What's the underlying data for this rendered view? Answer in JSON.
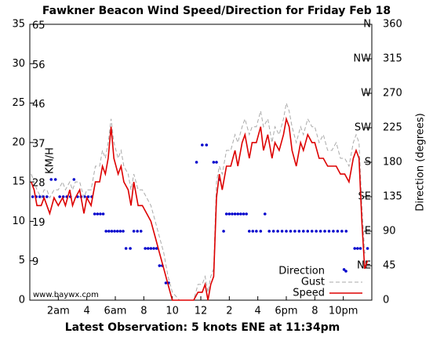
{
  "chart_data": {
    "type": "line",
    "title": "Fawkner Beacon Wind Speed/Direction for Friday Feb 18",
    "footer": "Latest Observation: 5 knots ENE at 11:34pm",
    "watermark": "www.baywx.com",
    "y_inner_label": "KM/H",
    "y2label": "Direction (degrees)",
    "xlim": [
      0,
      24
    ],
    "xticks": [
      {
        "value": 2,
        "label": "2am"
      },
      4,
      {
        "value": 6,
        "label": "6am"
      },
      8,
      10,
      12,
      {
        "value": 14,
        "label": "2"
      },
      {
        "value": 16,
        "label": "4"
      },
      {
        "value": 18,
        "label": "6pm"
      },
      {
        "value": 20,
        "label": "8"
      },
      {
        "value": 22,
        "label": "10pm"
      }
    ],
    "ylim": [
      0,
      35
    ],
    "yticks": [
      0,
      5,
      10,
      15,
      20,
      25,
      30,
      35
    ],
    "kmh_ticks": [
      {
        "value": 5,
        "label": "9"
      },
      {
        "value": 10,
        "label": "19"
      },
      {
        "value": 15,
        "label": "28"
      },
      {
        "value": 20,
        "label": "37"
      },
      {
        "value": 25,
        "label": "46"
      },
      {
        "value": 30,
        "label": "56"
      },
      {
        "value": 35,
        "label": "65"
      }
    ],
    "y2lim": [
      0,
      360
    ],
    "y2ticks": [
      0,
      45,
      90,
      135,
      180,
      225,
      270,
      315,
      360
    ],
    "compass_ticks": [
      {
        "value": 45,
        "label": "NE"
      },
      {
        "value": 90,
        "label": "E"
      },
      {
        "value": 135,
        "label": "SE"
      },
      {
        "value": 180,
        "label": "S"
      },
      {
        "value": 225,
        "label": "SW"
      },
      {
        "value": 270,
        "label": "W"
      },
      {
        "value": 315,
        "label": "NW"
      },
      {
        "value": 360,
        "label": "N"
      }
    ],
    "legend": "lower right",
    "x": [
      0.1,
      0.3,
      0.5,
      0.8,
      1.0,
      1.2,
      1.4,
      1.7,
      2.0,
      2.3,
      2.5,
      2.8,
      3.0,
      3.2,
      3.5,
      3.8,
      4.0,
      4.3,
      4.6,
      4.9,
      5.1,
      5.3,
      5.5,
      5.7,
      5.9,
      6.2,
      6.4,
      6.6,
      6.9,
      7.1,
      7.3,
      7.6,
      7.9,
      8.2,
      8.5,
      8.8,
      9.1,
      9.4,
      9.7,
      10.0,
      10.5,
      11.0,
      11.5,
      11.8,
      12.1,
      12.3,
      12.5,
      12.7,
      12.9,
      13.1,
      13.3,
      13.5,
      13.8,
      14.1,
      14.4,
      14.6,
      14.9,
      15.1,
      15.4,
      15.6,
      15.9,
      16.2,
      16.4,
      16.7,
      17.0,
      17.2,
      17.5,
      17.8,
      18.0,
      18.2,
      18.4,
      18.7,
      19.0,
      19.2,
      19.5,
      19.8,
      20.0,
      20.3,
      20.6,
      20.9,
      21.2,
      21.5,
      21.8,
      22.1,
      22.4,
      22.7,
      22.9,
      23.1,
      23.3,
      23.5,
      23.7
    ],
    "series": [
      {
        "name": "Direction",
        "color": "#0000cc",
        "style": "dots",
        "axis": "y2",
        "x": [
          0.2,
          0.45,
          0.7,
          0.95,
          1.2,
          1.5,
          1.8,
          2.1,
          2.35,
          2.6,
          2.85,
          3.1,
          3.35,
          3.6,
          3.85,
          4.1,
          4.35,
          4.55,
          4.75,
          4.95,
          5.15,
          5.35,
          5.55,
          5.75,
          5.95,
          6.15,
          6.35,
          6.55,
          6.75,
          7.05,
          7.3,
          7.55,
          7.8,
          8.1,
          8.3,
          8.5,
          8.7,
          8.9,
          9.1,
          9.3,
          9.55,
          9.75,
          11.7,
          12.1,
          12.4,
          12.9,
          13.1,
          13.3,
          13.6,
          13.8,
          14.0,
          14.2,
          14.4,
          14.6,
          14.8,
          15.0,
          15.2,
          15.4,
          15.65,
          15.9,
          16.2,
          16.5,
          16.8,
          17.1,
          17.4,
          17.7,
          18.0,
          18.3,
          18.6,
          18.9,
          19.2,
          19.5,
          19.8,
          20.1,
          20.4,
          20.7,
          21.0,
          21.3,
          21.6,
          21.9,
          22.05,
          22.2,
          22.8,
          23.0,
          23.2,
          23.7
        ],
        "values": [
          135,
          135,
          135,
          135,
          135,
          157.5,
          157.5,
          135,
          135,
          135,
          135,
          157.5,
          135,
          135,
          135,
          135,
          135,
          112.5,
          112.5,
          112.5,
          112.5,
          90,
          90,
          90,
          90,
          90,
          90,
          90,
          67.5,
          67.5,
          90,
          90,
          90,
          67.5,
          67.5,
          67.5,
          67.5,
          67.5,
          45,
          45,
          22.5,
          22.5,
          180,
          202.5,
          202.5,
          180,
          180,
          157.5,
          90,
          112.5,
          112.5,
          112.5,
          112.5,
          112.5,
          112.5,
          112.5,
          112.5,
          90,
          90,
          90,
          90,
          112.5,
          90,
          90,
          90,
          90,
          90,
          90,
          90,
          90,
          90,
          90,
          90,
          90,
          90,
          90,
          90,
          90,
          90,
          90,
          40,
          90,
          67.5,
          67.5,
          67.5,
          67.5
        ]
      },
      {
        "name": "Gust",
        "color": "#aaaaaa",
        "style": "dashed",
        "values": [
          16,
          15,
          14,
          13,
          14,
          14,
          13,
          14,
          14,
          15,
          14,
          15,
          14,
          15,
          15,
          13,
          14,
          14,
          17,
          17,
          19,
          18,
          20,
          23,
          20,
          18,
          19,
          17,
          16,
          14,
          16,
          14,
          14,
          13,
          12,
          10,
          8,
          6,
          3,
          1,
          0,
          0,
          0,
          2,
          2,
          3,
          1,
          3,
          4,
          15,
          17,
          16,
          19,
          19,
          21,
          20,
          22,
          23,
          21,
          22,
          22,
          24,
          22,
          23,
          20,
          22,
          21,
          23,
          25,
          24,
          22,
          20,
          22,
          21,
          23,
          22,
          22,
          20,
          21,
          19,
          19,
          20,
          18,
          18,
          17,
          20,
          21,
          20,
          12,
          6,
          6
        ]
      },
      {
        "name": "Speed",
        "color": "#dd0000",
        "style": "solid",
        "values": [
          15,
          14,
          12,
          12,
          13,
          12,
          11,
          13,
          12,
          13,
          12,
          14,
          12,
          13,
          14,
          11,
          13,
          12,
          15,
          15,
          17,
          16,
          18,
          22,
          18,
          16,
          17,
          15,
          14,
          12,
          15,
          12,
          12,
          11,
          10,
          8,
          6,
          4,
          2,
          0,
          0,
          0,
          0,
          1,
          1,
          2,
          0,
          2,
          3,
          13,
          16,
          14,
          17,
          17,
          19,
          17,
          20,
          21,
          18,
          20,
          20,
          22,
          19,
          21,
          18,
          20,
          19,
          21,
          23,
          22,
          19,
          17,
          20,
          19,
          21,
          20,
          20,
          18,
          18,
          17,
          17,
          17,
          16,
          16,
          15,
          18,
          19,
          18,
          10,
          4,
          5
        ]
      }
    ]
  }
}
